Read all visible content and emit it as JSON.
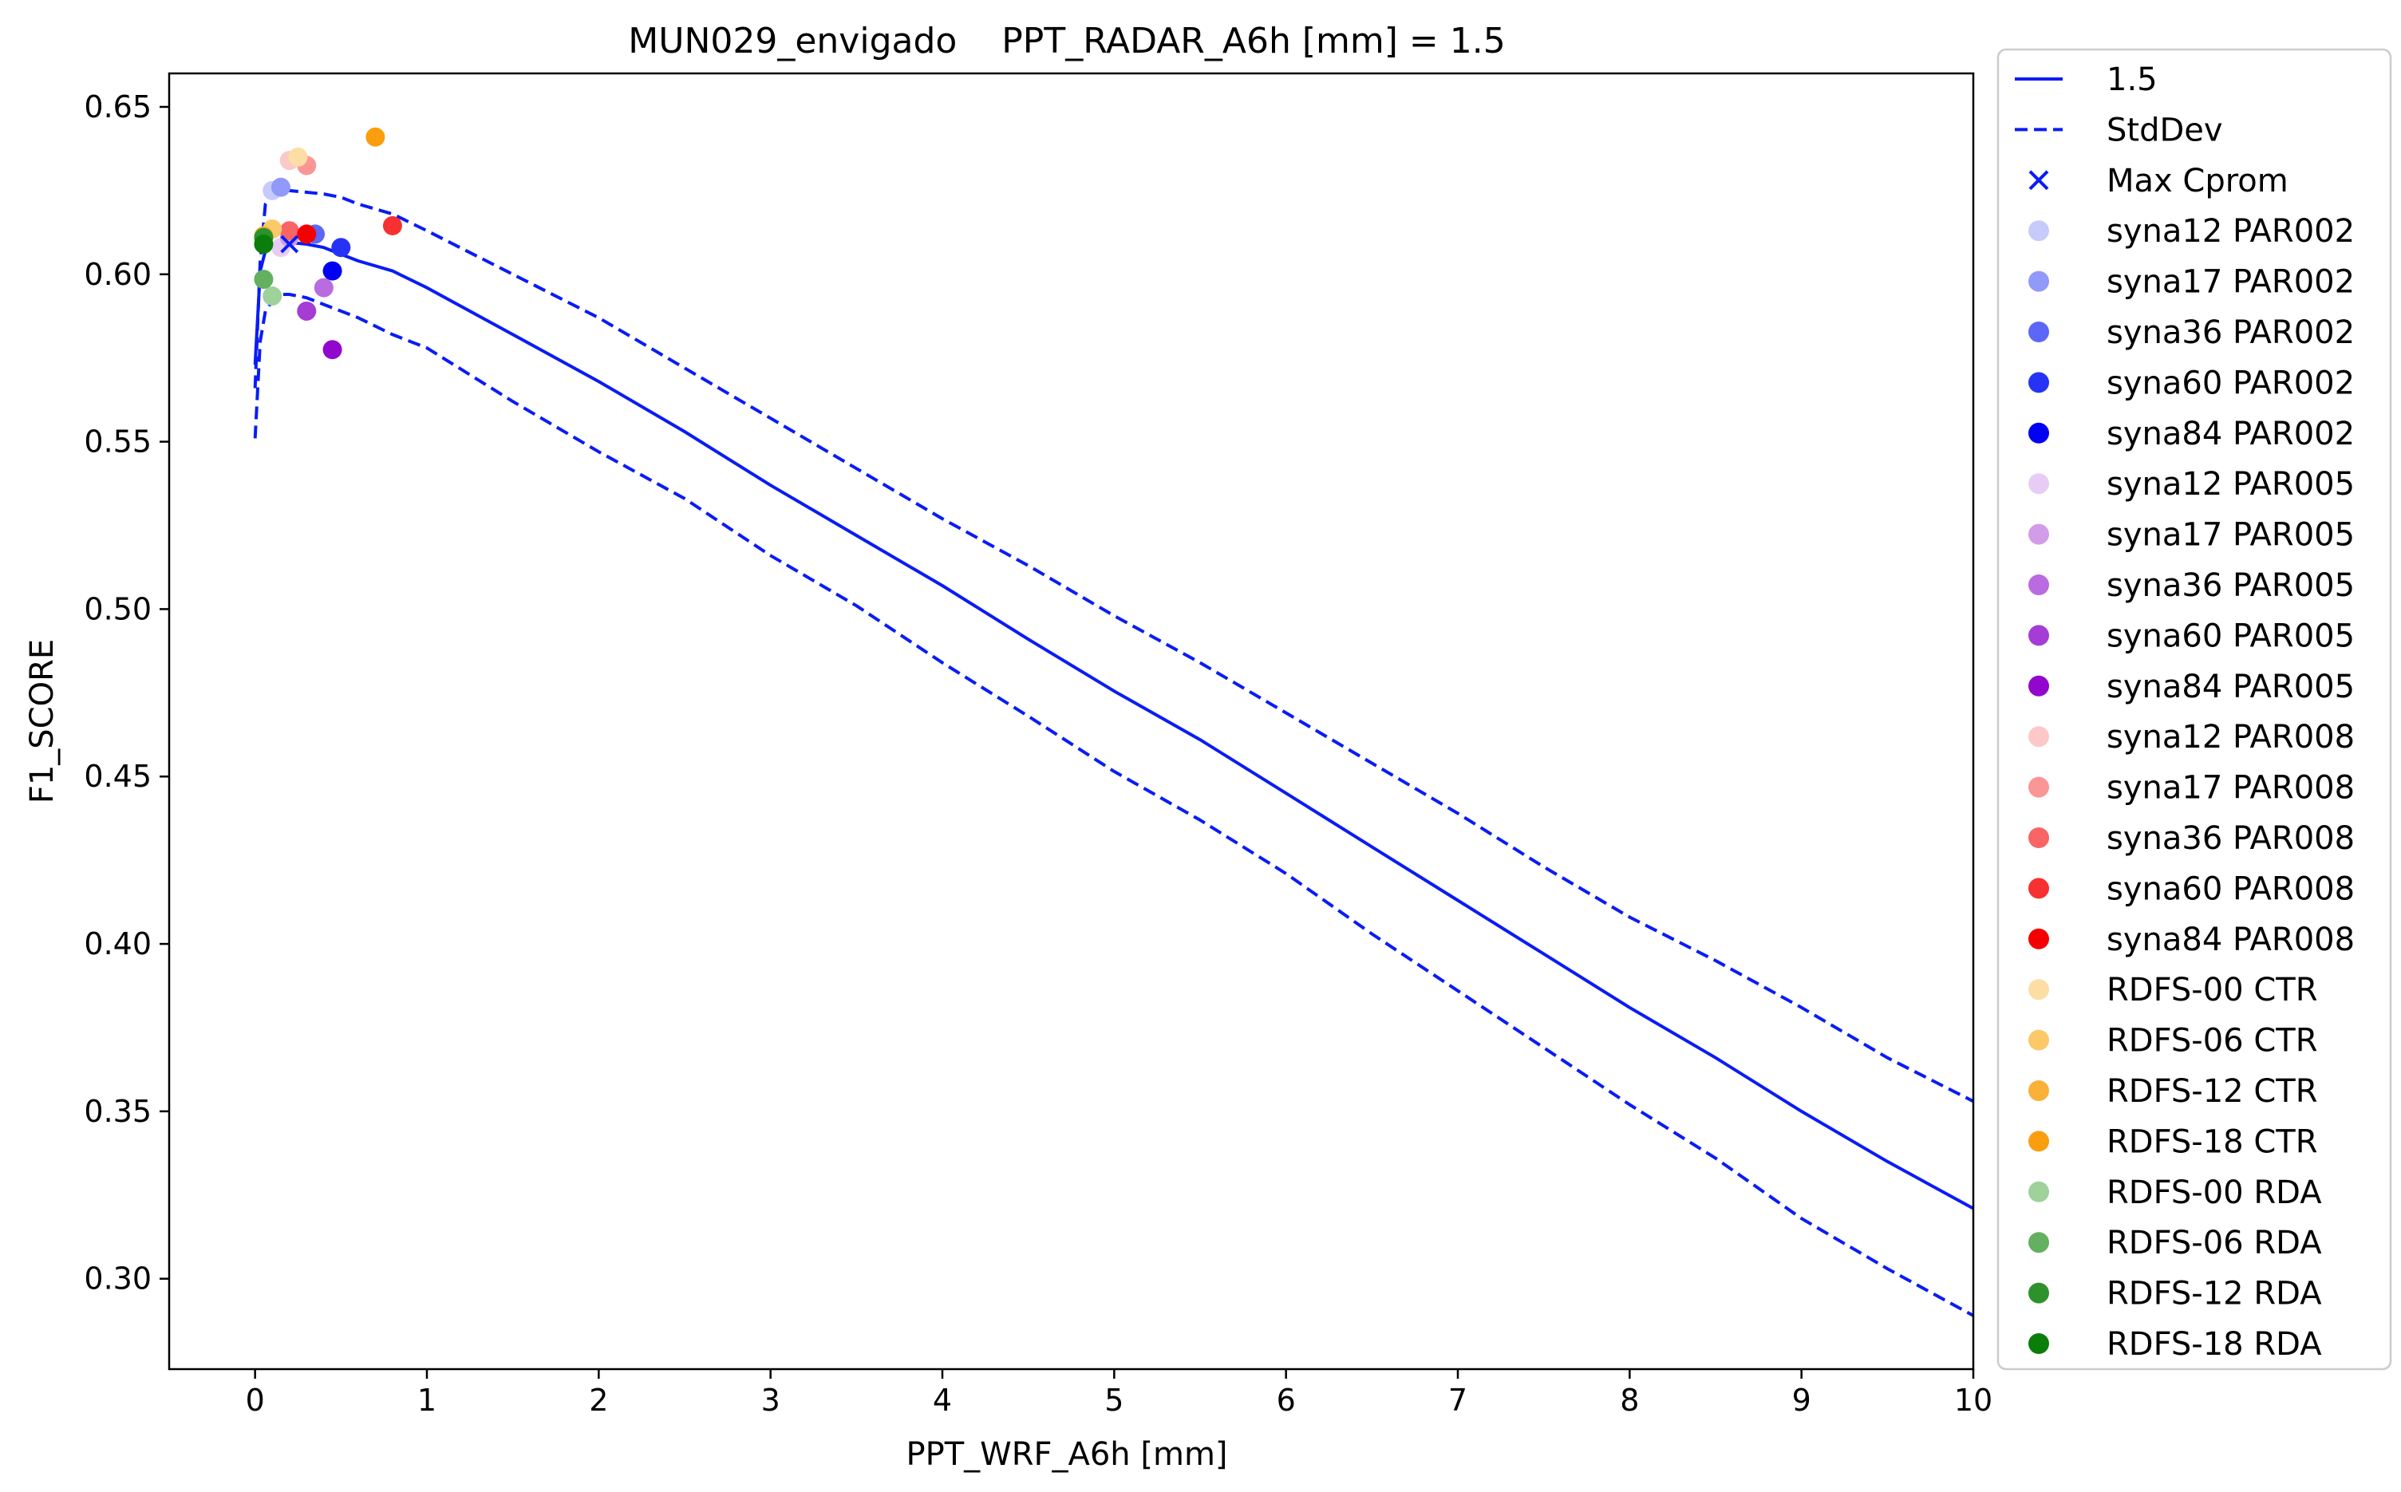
{
  "chart_data": {
    "type": "line",
    "title": "MUN029_envigado    PPT_RADAR_A6h [mm] = 1.5",
    "xlabel": "PPT_WRF_A6h [mm]",
    "ylabel": "F1_SCORE",
    "xlim": [
      -0.5,
      10
    ],
    "ylim": [
      0.273,
      0.66
    ],
    "xticks": [
      0,
      1,
      2,
      3,
      4,
      5,
      6,
      7,
      8,
      9,
      10
    ],
    "yticks": [
      0.3,
      0.35,
      0.4,
      0.45,
      0.5,
      0.55,
      0.6,
      0.65
    ],
    "xtick_labels": [
      "0",
      "1",
      "2",
      "3",
      "4",
      "5",
      "6",
      "7",
      "8",
      "9",
      "10"
    ],
    "ytick_labels": [
      "0.30",
      "0.35",
      "0.40",
      "0.45",
      "0.50",
      "0.55",
      "0.60",
      "0.65"
    ],
    "grid": false,
    "legend_position": "outside-right",
    "line_color": "#0a1cf5",
    "mean_line": {
      "name": "1.5",
      "x": [
        0,
        0.03,
        0.06,
        0.1,
        0.15,
        0.2,
        0.3,
        0.4,
        0.5,
        0.6,
        0.8,
        1.0,
        1.5,
        2.0,
        2.5,
        3.0,
        3.5,
        4.0,
        4.5,
        5.0,
        5.5,
        6.0,
        6.5,
        7.0,
        7.5,
        8.0,
        8.5,
        9.0,
        9.5,
        10.0
      ],
      "y": [
        0.573,
        0.601,
        0.607,
        0.609,
        0.61,
        0.6095,
        0.609,
        0.608,
        0.606,
        0.604,
        0.601,
        0.596,
        0.582,
        0.568,
        0.553,
        0.537,
        0.522,
        0.507,
        0.491,
        0.4755,
        0.461,
        0.445,
        0.429,
        0.413,
        0.397,
        0.381,
        0.366,
        0.35,
        0.335,
        0.321
      ]
    },
    "std_upper": {
      "name": "StdDev",
      "x": [
        0,
        0.03,
        0.06,
        0.1,
        0.15,
        0.2,
        0.3,
        0.4,
        0.5,
        0.6,
        0.8,
        1.0,
        1.5,
        2.0,
        2.5,
        3.0,
        3.5,
        4.0,
        4.5,
        5.0,
        5.5,
        6.0,
        6.5,
        7.0,
        7.5,
        8.0,
        8.5,
        9.0,
        9.5,
        10.0
      ],
      "y": [
        0.566,
        0.604,
        0.621,
        0.624,
        0.625,
        0.625,
        0.6245,
        0.624,
        0.623,
        0.621,
        0.618,
        0.613,
        0.6,
        0.587,
        0.572,
        0.557,
        0.542,
        0.527,
        0.513,
        0.498,
        0.484,
        0.469,
        0.454,
        0.439,
        0.423,
        0.408,
        0.395,
        0.381,
        0.366,
        0.353
      ]
    },
    "std_lower": {
      "name": "StdDev",
      "x": [
        0,
        0.03,
        0.06,
        0.1,
        0.15,
        0.2,
        0.3,
        0.4,
        0.5,
        0.6,
        0.8,
        1.0,
        1.5,
        2.0,
        2.5,
        3.0,
        3.5,
        4.0,
        4.5,
        5.0,
        5.5,
        6.0,
        6.5,
        7.0,
        7.5,
        8.0,
        8.5,
        9.0,
        9.5,
        10.0
      ],
      "y": [
        0.551,
        0.58,
        0.589,
        0.592,
        0.594,
        0.594,
        0.593,
        0.591,
        0.589,
        0.587,
        0.582,
        0.578,
        0.562,
        0.547,
        0.533,
        0.516,
        0.501,
        0.484,
        0.468,
        0.4515,
        0.437,
        0.421,
        0.403,
        0.386,
        0.369,
        0.352,
        0.336,
        0.318,
        0.303,
        0.289
      ]
    },
    "max_cprom": {
      "name": "Max Cprom",
      "x": 0.2,
      "y": 0.609,
      "color": "#0a1cf5"
    },
    "scatter_series": [
      {
        "name": "syna12 PAR002",
        "x": 0.1,
        "y": 0.625,
        "color": "#c7cbfb"
      },
      {
        "name": "syna17 PAR002",
        "x": 0.15,
        "y": 0.626,
        "color": "#9199f9"
      },
      {
        "name": "syna36 PAR002",
        "x": 0.35,
        "y": 0.612,
        "color": "#5c66f7"
      },
      {
        "name": "syna60 PAR002",
        "x": 0.5,
        "y": 0.608,
        "color": "#2633f5"
      },
      {
        "name": "syna84 PAR002",
        "x": 0.45,
        "y": 0.601,
        "color": "#0000f5"
      },
      {
        "name": "syna12 PAR005",
        "x": 0.15,
        "y": 0.608,
        "color": "#e7cdf3"
      },
      {
        "name": "syna17 PAR005",
        "x": 0.2,
        "y": 0.611,
        "color": "#d29de8"
      },
      {
        "name": "syna36 PAR005",
        "x": 0.4,
        "y": 0.596,
        "color": "#ba6bdf"
      },
      {
        "name": "syna60 PAR005",
        "x": 0.3,
        "y": 0.589,
        "color": "#a53cd5"
      },
      {
        "name": "syna84 PAR005",
        "x": 0.45,
        "y": 0.5775,
        "color": "#9207cd"
      },
      {
        "name": "syna12 PAR008",
        "x": 0.2,
        "y": 0.634,
        "color": "#fcc8c8"
      },
      {
        "name": "syna17 PAR008",
        "x": 0.3,
        "y": 0.6325,
        "color": "#fb9696"
      },
      {
        "name": "syna36 PAR008",
        "x": 0.2,
        "y": 0.613,
        "color": "#f96464"
      },
      {
        "name": "syna60 PAR008",
        "x": 0.8,
        "y": 0.6145,
        "color": "#f73131"
      },
      {
        "name": "syna84 PAR008",
        "x": 0.3,
        "y": 0.612,
        "color": "#f50000"
      },
      {
        "name": "RDFS-00 CTR",
        "x": 0.25,
        "y": 0.635,
        "color": "#fcdda4"
      },
      {
        "name": "RDFS-06 CTR",
        "x": 0.1,
        "y": 0.6135,
        "color": "#fbc96a"
      },
      {
        "name": "RDFS-12 CTR",
        "x": 0.05,
        "y": 0.6115,
        "color": "#f9b13a"
      },
      {
        "name": "RDFS-18 CTR",
        "x": 0.7,
        "y": 0.641,
        "color": "#f99f0f"
      },
      {
        "name": "RDFS-00 RDA",
        "x": 0.1,
        "y": 0.5935,
        "color": "#9fd19b"
      },
      {
        "name": "RDFS-06 RDA",
        "x": 0.05,
        "y": 0.5985,
        "color": "#63b060"
      },
      {
        "name": "RDFS-12 RDA",
        "x": 0.05,
        "y": 0.611,
        "color": "#2d922b"
      },
      {
        "name": "RDFS-18 RDA",
        "x": 0.05,
        "y": 0.609,
        "color": "#0a7d0a"
      }
    ],
    "legend": {
      "entries": [
        "1.5",
        "StdDev",
        "Max Cprom",
        "syna12 PAR002",
        "syna17 PAR002",
        "syna36 PAR002",
        "syna60 PAR002",
        "syna84 PAR002",
        "syna12 PAR005",
        "syna17 PAR005",
        "syna36 PAR005",
        "syna60 PAR005",
        "syna84 PAR005",
        "syna12 PAR008",
        "syna17 PAR008",
        "syna36 PAR008",
        "syna60 PAR008",
        "syna84 PAR008",
        "RDFS-00 CTR",
        "RDFS-06 CTR",
        "RDFS-12 CTR",
        "RDFS-18 CTR",
        "RDFS-00 RDA",
        "RDFS-06 RDA",
        "RDFS-12 RDA",
        "RDFS-18 RDA"
      ]
    }
  }
}
